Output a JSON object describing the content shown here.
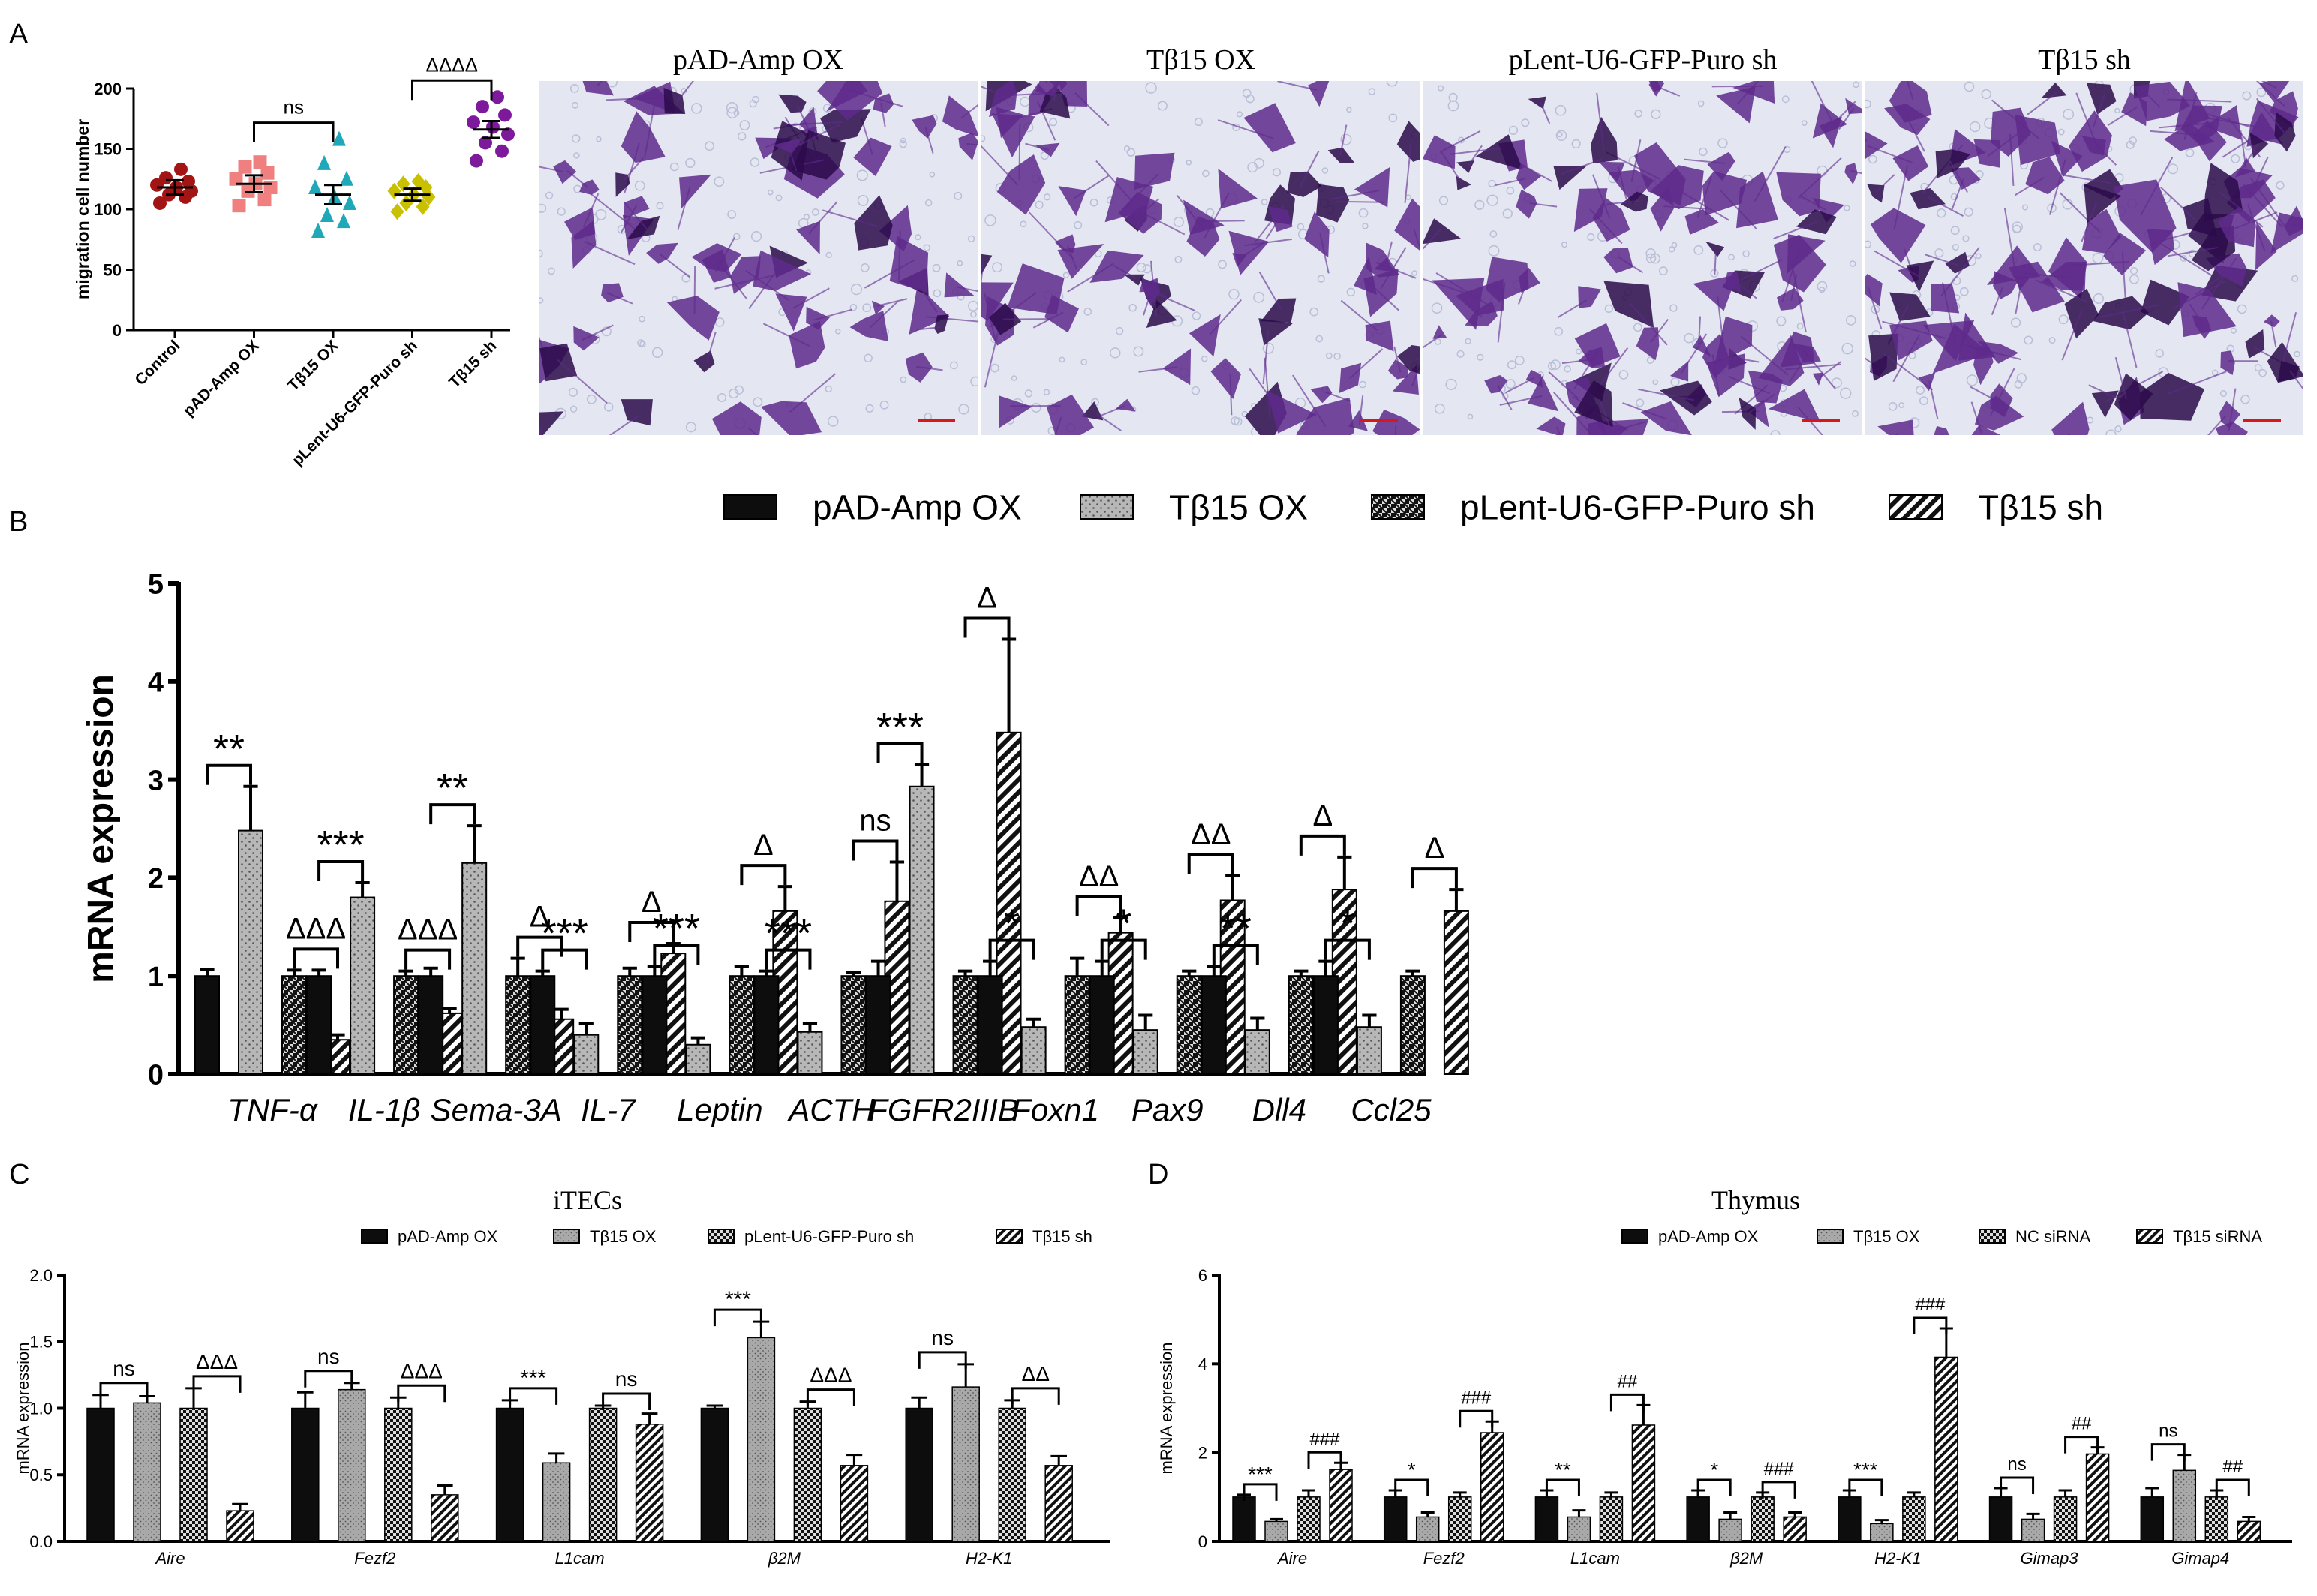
{
  "panels": {
    "a": "A",
    "b": "B",
    "c": "C",
    "d": "D"
  },
  "panel_a": {
    "chart_type": "scatter",
    "ylabel": "migration cell number",
    "yticks": [
      0,
      50,
      100,
      150,
      200
    ],
    "ylim": [
      0,
      200
    ],
    "groups": [
      {
        "label": "Control",
        "color": "#a31515",
        "marker": "circle",
        "mean": 118,
        "sem": 6,
        "points": [
          105,
          110,
          112,
          115,
          118,
          120,
          123,
          126,
          133
        ]
      },
      {
        "label": "pAD-Amp OX",
        "color": "#f08080",
        "marker": "square",
        "mean": 121,
        "sem": 7,
        "points": [
          103,
          108,
          115,
          118,
          121,
          125,
          130,
          135,
          139
        ]
      },
      {
        "label": "Tβ15 OX",
        "color": "#1fa8b8",
        "marker": "triangle",
        "mean": 112,
        "sem": 8,
        "points": [
          82,
          90,
          95,
          105,
          110,
          118,
          125,
          138,
          158
        ]
      },
      {
        "label": "pLent-U6-GFP-Puro sh",
        "color": "#c8c000",
        "marker": "diamond",
        "mean": 112,
        "sem": 5,
        "points": [
          98,
          102,
          105,
          110,
          112,
          115,
          118,
          121,
          123
        ]
      },
      {
        "label": "Tβ15 sh",
        "color": "#7d1a9c",
        "marker": "circle",
        "mean": 166,
        "sem": 7,
        "points": [
          140,
          148,
          155,
          162,
          168,
          172,
          178,
          185,
          193
        ]
      }
    ],
    "annotations": [
      {
        "text": "ns",
        "from": 1,
        "to": 2
      },
      {
        "text": "ΔΔΔΔ",
        "from": 3,
        "to": 4
      }
    ]
  },
  "micrographs": {
    "titles": [
      "pAD-Amp OX",
      "Tβ15 OX",
      "pLent-U6-GFP-Puro sh",
      "Tβ15 sh"
    ],
    "colors": {
      "background": "#e4e6f2",
      "cells": "#5e2a8c",
      "dark": "#2c0a4a",
      "scalebar": "#d81818"
    }
  },
  "chart_data": [
    {
      "id": "B",
      "type": "bar",
      "ylabel": "mRNA expression",
      "ylim": [
        0,
        5
      ],
      "yticks": [
        0,
        1,
        2,
        3,
        4,
        5
      ],
      "legend": [
        "pAD-Amp OX",
        "Tβ15 OX",
        "pLent-U6-GFP-Puro sh",
        "Tβ15 sh"
      ],
      "categories": [
        "TNF-α",
        "IL-1β",
        "Sema-3A",
        "IL-7",
        "Leptin",
        "ACTH",
        "FGFR2IIIB",
        "Foxn1",
        "Pax9",
        "Dll4",
        "Ccl25"
      ],
      "series": [
        {
          "name": "pAD-Amp OX",
          "values": [
            1,
            1,
            1,
            1,
            1,
            1,
            1,
            1,
            1,
            1,
            1
          ],
          "errors": [
            0.07,
            0.06,
            0.08,
            0.05,
            0.1,
            0.05,
            0.15,
            0.15,
            0.15,
            0.1,
            0.15
          ]
        },
        {
          "name": "Tβ15 OX",
          "values": [
            2.48,
            1.8,
            2.15,
            0.4,
            0.3,
            0.43,
            2.93,
            0.48,
            0.45,
            0.45,
            0.48
          ],
          "errors": [
            0.45,
            0.15,
            0.38,
            0.12,
            0.07,
            0.09,
            0.22,
            0.08,
            0.15,
            0.12,
            0.12
          ]
        },
        {
          "name": "pLent-U6-GFP-Puro sh",
          "values": [
            1,
            1,
            1,
            1,
            1,
            1,
            1,
            1,
            1,
            1,
            1
          ],
          "errors": [
            0.06,
            0.05,
            0.18,
            0.08,
            0.1,
            0.04,
            0.05,
            0.18,
            0.05,
            0.05,
            0.05
          ]
        },
        {
          "name": "Tβ15 sh",
          "values": [
            0.35,
            0.62,
            0.56,
            1.23,
            1.66,
            1.76,
            3.48,
            1.44,
            1.77,
            1.88,
            1.66
          ],
          "errors": [
            0.05,
            0.05,
            0.1,
            0.1,
            0.25,
            0.4,
            0.95,
            0.15,
            0.25,
            0.33,
            0.22
          ]
        }
      ],
      "sig_left": [
        "**",
        "***",
        "**",
        "***",
        "***",
        "***",
        "***",
        "*",
        "*",
        "**",
        "*"
      ],
      "sig_right": [
        "ΔΔΔ",
        "ΔΔΔ",
        "Δ",
        "Δ",
        "Δ",
        "ns",
        "Δ",
        "ΔΔ",
        "ΔΔ",
        "Δ",
        "Δ"
      ]
    },
    {
      "id": "C",
      "type": "bar",
      "title": "iTECs",
      "ylabel": "mRNA expression",
      "ylim": [
        0,
        2.0
      ],
      "yticks": [
        "0.0",
        "0.5",
        "1.0",
        "1.5",
        "2.0"
      ],
      "legend": [
        "pAD-Amp OX",
        "Tβ15 OX",
        "pLent-U6-GFP-Puro sh",
        "Tβ15 sh"
      ],
      "categories": [
        "Aire",
        "Fezf2",
        "L1cam",
        "β2M",
        "H2-K1"
      ],
      "series": [
        {
          "name": "pAD-Amp OX",
          "values": [
            1,
            1,
            1,
            1,
            1
          ],
          "errors": [
            0.1,
            0.12,
            0.06,
            0.02,
            0.08
          ]
        },
        {
          "name": "Tβ15 OX",
          "values": [
            1.04,
            1.14,
            0.59,
            1.53,
            1.16
          ],
          "errors": [
            0.05,
            0.05,
            0.07,
            0.12,
            0.17
          ]
        },
        {
          "name": "pLent-U6-GFP-Puro sh",
          "values": [
            1,
            1,
            1,
            1,
            1
          ],
          "errors": [
            0.15,
            0.08,
            0.02,
            0.05,
            0.06
          ]
        },
        {
          "name": "Tβ15 sh",
          "values": [
            0.23,
            0.35,
            0.88,
            0.57,
            0.57
          ],
          "errors": [
            0.05,
            0.07,
            0.08,
            0.08,
            0.07
          ]
        }
      ],
      "sig_left": [
        "ns",
        "ns",
        "***",
        "***",
        "ns"
      ],
      "sig_right": [
        "ΔΔΔ",
        "ΔΔΔ",
        "ns",
        "ΔΔΔ",
        "ΔΔ"
      ]
    },
    {
      "id": "D",
      "type": "bar",
      "title": "Thymus",
      "ylabel": "mRNA expression",
      "ylim": [
        0,
        6
      ],
      "yticks": [
        0,
        2,
        4,
        6
      ],
      "legend": [
        "pAD-Amp OX",
        "Tβ15 OX",
        "NC siRNA",
        "Tβ15 siRNA"
      ],
      "categories": [
        "Aire",
        "Fezf2",
        "L1cam",
        "β2M",
        "H2-K1",
        "Gimap3",
        "Gimap4"
      ],
      "series": [
        {
          "name": "pAD-Amp OX",
          "values": [
            1,
            1,
            1,
            1,
            1,
            1,
            1
          ],
          "errors": [
            0.05,
            0.15,
            0.15,
            0.15,
            0.15,
            0.2,
            0.2
          ]
        },
        {
          "name": "Tβ15 OX",
          "values": [
            0.45,
            0.55,
            0.55,
            0.5,
            0.4,
            0.5,
            1.6
          ],
          "errors": [
            0.05,
            0.1,
            0.15,
            0.15,
            0.08,
            0.12,
            0.35
          ]
        },
        {
          "name": "NC siRNA",
          "values": [
            1,
            1,
            1,
            1,
            1,
            1,
            1
          ],
          "errors": [
            0.15,
            0.1,
            0.1,
            0.1,
            0.1,
            0.15,
            0.15
          ]
        },
        {
          "name": "Tβ15 siRNA",
          "values": [
            1.62,
            2.45,
            2.62,
            0.55,
            4.15,
            1.97,
            0.45
          ],
          "errors": [
            0.15,
            0.25,
            0.45,
            0.1,
            0.65,
            0.15,
            0.1
          ]
        }
      ],
      "sig_left": [
        "***",
        "*",
        "**",
        "*",
        "***",
        "ns",
        "ns"
      ],
      "sig_right": [
        "###",
        "###",
        "##",
        "###",
        "###",
        "##",
        "##"
      ]
    }
  ]
}
